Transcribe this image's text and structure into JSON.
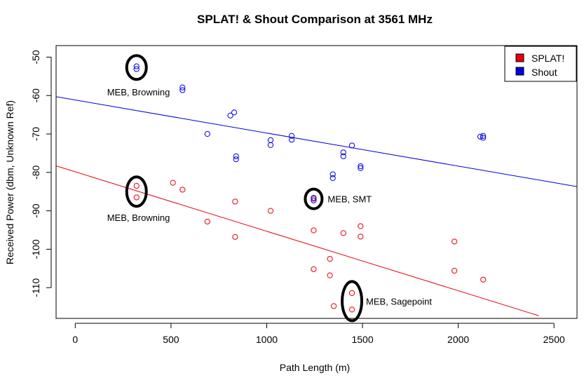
{
  "chart_data": {
    "type": "scatter",
    "title": "SPLAT! & Shout Comparison at 3561 MHz",
    "xlabel": "Path Length (m)",
    "ylabel": "Received Power (dbm, Unknown Ref)",
    "xlim": [
      -100,
      2620
    ],
    "ylim": [
      -118,
      -47
    ],
    "x_ticks": [
      0,
      500,
      1000,
      1500,
      2000,
      2500
    ],
    "y_ticks": [
      -50,
      -60,
      -70,
      -80,
      -90,
      -100,
      -110
    ],
    "grid": false,
    "legend_position": "top-right",
    "series": [
      {
        "name": "SPLAT!",
        "color": "#e8000b",
        "points": [
          [
            320,
            -83.5
          ],
          [
            320,
            -86.5
          ],
          [
            510,
            -82.7
          ],
          [
            560,
            -84.5
          ],
          [
            690,
            -92.8
          ],
          [
            835,
            -87.6
          ],
          [
            835,
            -96.8
          ],
          [
            1020,
            -90.0
          ],
          [
            1245,
            -86.9
          ],
          [
            1245,
            -95.1
          ],
          [
            1245,
            -105.2
          ],
          [
            1330,
            -102.5
          ],
          [
            1330,
            -106.8
          ],
          [
            1350,
            -114.8
          ],
          [
            1400,
            -95.8
          ],
          [
            1445,
            -111.4
          ],
          [
            1445,
            -115.7
          ],
          [
            1490,
            -94.0
          ],
          [
            1490,
            -96.7
          ],
          [
            1980,
            -98.0
          ],
          [
            1980,
            -105.6
          ],
          [
            2130,
            -107.9
          ]
        ],
        "fit": [
          [
            -100,
            -78.3
          ],
          [
            2420,
            -117.3
          ]
        ]
      },
      {
        "name": "Shout",
        "color": "#0000e0",
        "points": [
          [
            320,
            -52.4
          ],
          [
            320,
            -53.1
          ],
          [
            560,
            -57.9
          ],
          [
            560,
            -58.6
          ],
          [
            690,
            -70.0
          ],
          [
            810,
            -65.2
          ],
          [
            830,
            -64.4
          ],
          [
            840,
            -75.8
          ],
          [
            840,
            -76.6
          ],
          [
            1020,
            -71.6
          ],
          [
            1020,
            -72.9
          ],
          [
            1130,
            -70.5
          ],
          [
            1130,
            -71.5
          ],
          [
            1245,
            -86.6
          ],
          [
            1245,
            -87.3
          ],
          [
            1345,
            -80.5
          ],
          [
            1345,
            -81.5
          ],
          [
            1400,
            -74.8
          ],
          [
            1400,
            -75.8
          ],
          [
            1445,
            -73.0
          ],
          [
            1490,
            -78.4
          ],
          [
            1490,
            -78.9
          ],
          [
            2115,
            -70.7
          ],
          [
            2130,
            -70.5
          ],
          [
            2130,
            -71.0
          ]
        ],
        "fit": [
          [
            -100,
            -60.3
          ],
          [
            2620,
            -83.7
          ]
        ]
      }
    ],
    "annotations": [
      {
        "text": "MEB, Browning",
        "anchor_x": 320,
        "anchor_y": -52.7
      },
      {
        "text": "MEB, Browning",
        "anchor_x": 320,
        "anchor_y": -85.0
      },
      {
        "text": "MEB, SMT",
        "anchor_x": 1245,
        "anchor_y": -86.9
      },
      {
        "text": "MEB, Sagepoint",
        "anchor_x": 1445,
        "anchor_y": -113.5
      }
    ]
  }
}
